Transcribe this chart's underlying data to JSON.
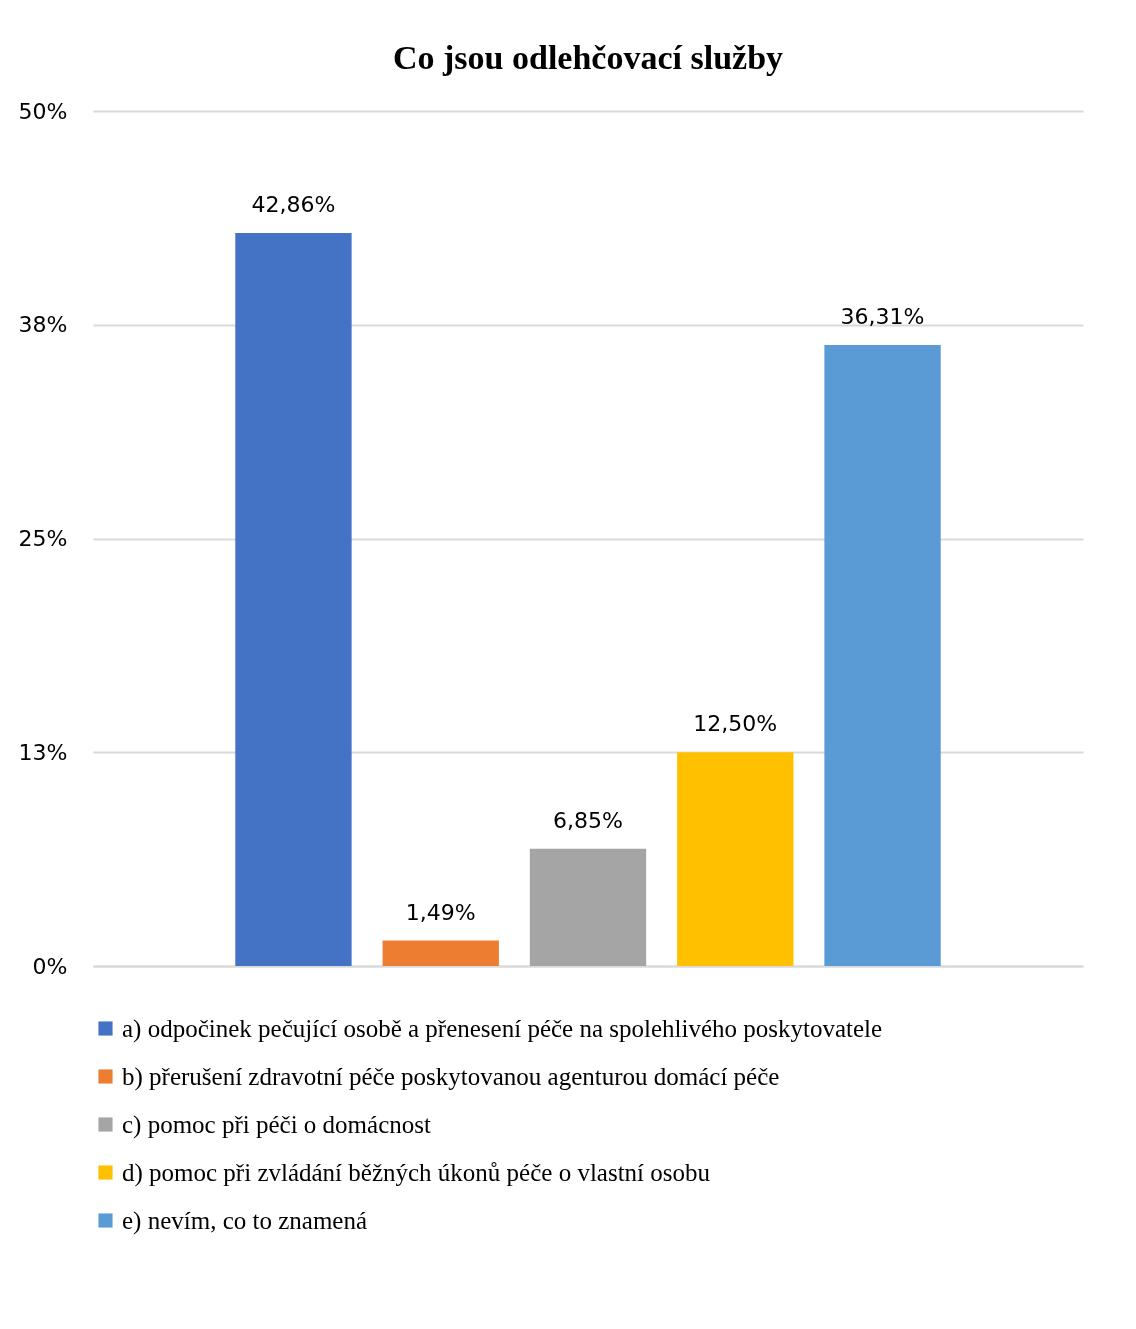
{
  "chart_data": {
    "type": "bar",
    "title": "Co jsou odlehčovací služby",
    "categories": [
      null
    ],
    "series": [
      {
        "name": "a) odpočinek pečující osobě a přenesení péče na spolehlivého poskytovatele",
        "color": "#4472c4",
        "values": [
          42.86
        ],
        "value_labels": [
          "42,86%"
        ]
      },
      {
        "name": "b) přerušení zdravotní péče poskytovanou agenturou domácí péče",
        "color": "#ed7d31",
        "values": [
          1.49
        ],
        "value_labels": [
          "1,49%"
        ]
      },
      {
        "name": "c) pomoc při péči o domácnost",
        "color": "#a5a5a5",
        "values": [
          6.85
        ],
        "value_labels": [
          "6,85%"
        ]
      },
      {
        "name": "d) pomoc při zvládání běžných úkonů péče o vlastní osobu",
        "color": "#ffc000",
        "values": [
          12.5
        ],
        "value_labels": [
          "12,50%"
        ]
      },
      {
        "name": "e) nevím, co to znamená",
        "color": "#5b9bd5",
        "values": [
          36.31
        ],
        "value_labels": [
          "36,31%"
        ]
      }
    ],
    "ylim": [
      0,
      50
    ],
    "yticks": [
      {
        "value": 0,
        "label": "0%"
      },
      {
        "value": 12.5,
        "label": "13%"
      },
      {
        "value": 25,
        "label": "25%"
      },
      {
        "value": 37.5,
        "label": "38%"
      },
      {
        "value": 50,
        "label": "50%"
      }
    ],
    "grid": "y",
    "legend": "bottom",
    "tick_labels": "y"
  }
}
